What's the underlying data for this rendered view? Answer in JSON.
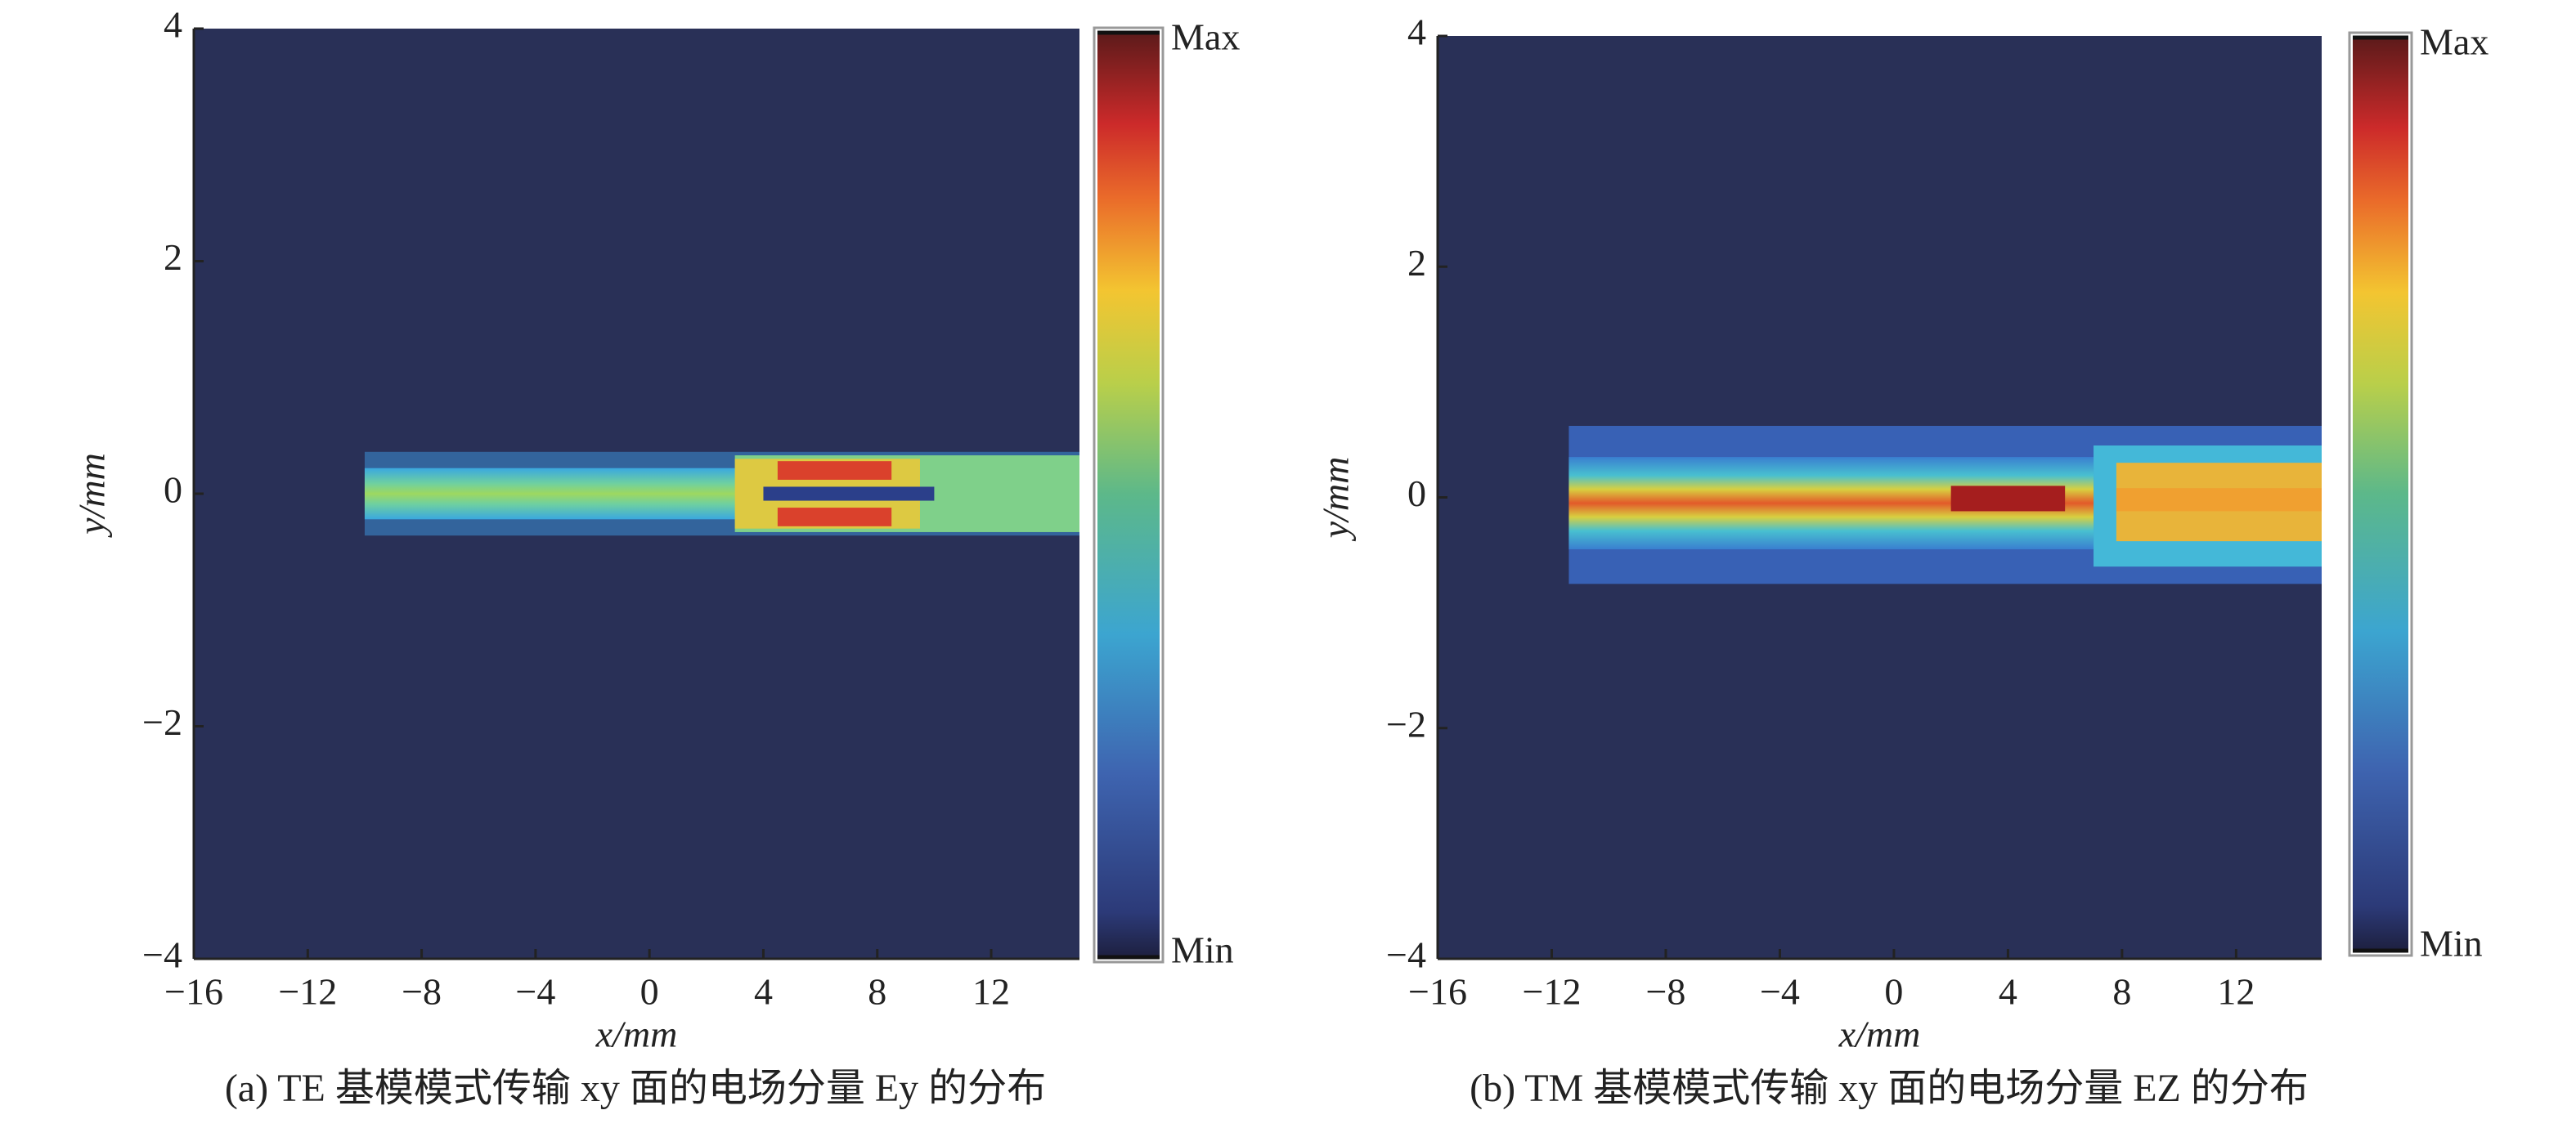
{
  "chart_data": [
    {
      "type": "heatmap",
      "caption": "(a) TE 基模模式传输 xy 面的电场分量 Ey 的分布",
      "xlabel": "x/mm",
      "ylabel": "y/mm",
      "xlim": [
        -16,
        15.1
      ],
      "ylim": [
        -4,
        4
      ],
      "xticks": [
        {
          "value": -16,
          "label": "−16"
        },
        {
          "value": -12,
          "label": "−12"
        },
        {
          "value": -8,
          "label": "−8"
        },
        {
          "value": -4,
          "label": "−4"
        },
        0,
        4,
        8,
        12
      ],
      "yticks": [
        {
          "value": -4,
          "label": "−4"
        },
        {
          "value": -2,
          "label": "−2"
        },
        0,
        2,
        4
      ],
      "colorbar": {
        "max_label": "Max",
        "min_label": "Min"
      }
    },
    {
      "type": "heatmap",
      "caption": "(b) TM 基模模式传输 xy 面的电场分量 EZ 的分布",
      "xlabel": "x/mm",
      "ylabel": "y/mm",
      "xlim": [
        -16,
        15
      ],
      "ylim": [
        -4,
        4
      ],
      "xticks": [
        {
          "value": -16,
          "label": "−16"
        },
        {
          "value": -12,
          "label": "−12"
        },
        {
          "value": -8,
          "label": "−8"
        },
        {
          "value": -4,
          "label": "−4"
        },
        0,
        4,
        8,
        12
      ],
      "yticks": [
        {
          "value": -4,
          "label": "−4"
        },
        {
          "value": -2,
          "label": "−2"
        },
        0,
        2,
        4
      ],
      "colorbar": {
        "max_label": "Max",
        "min_label": "Min"
      }
    }
  ]
}
